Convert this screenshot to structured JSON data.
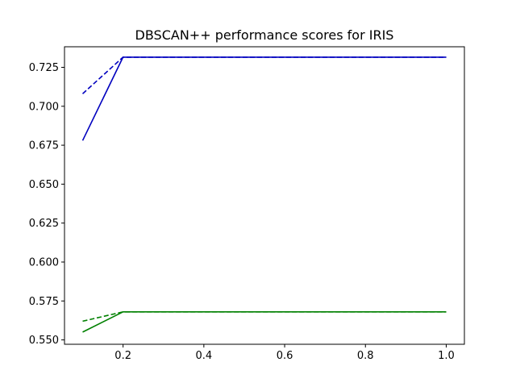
{
  "chart_data": {
    "type": "line",
    "title": "DBSCAN++ performance scores for IRIS",
    "xlabel": "",
    "ylabel": "",
    "xlim": [
      0.055,
      1.045
    ],
    "ylim": [
      0.5472,
      0.7382
    ],
    "grid": false,
    "legend": "none",
    "x": [
      0.1,
      0.2,
      0.3,
      0.4,
      0.5,
      0.6,
      0.7,
      0.8,
      0.9,
      1.0
    ],
    "x_ticks": [
      0.2,
      0.4,
      0.6,
      0.8,
      1.0
    ],
    "x_tick_labels": [
      "0.2",
      "0.4",
      "0.6",
      "0.8",
      "1.0"
    ],
    "y_ticks": [
      0.55,
      0.575,
      0.6,
      0.625,
      0.65,
      0.675,
      0.7,
      0.725
    ],
    "y_tick_labels": [
      "0.550",
      "0.575",
      "0.600",
      "0.625",
      "0.650",
      "0.675",
      "0.700",
      "0.725"
    ],
    "series": [
      {
        "color": "#0000bf",
        "style": "solid",
        "values": [
          0.678,
          0.7315,
          0.7315,
          0.7315,
          0.7315,
          0.7315,
          0.7315,
          0.7315,
          0.7315,
          0.7315
        ]
      },
      {
        "color": "#0000bf",
        "style": "dashed",
        "values": [
          0.708,
          0.7315,
          0.7315,
          0.7315,
          0.7315,
          0.7315,
          0.7315,
          0.7315,
          0.7315,
          0.7315
        ]
      },
      {
        "color": "#008000",
        "style": "solid",
        "values": [
          0.555,
          0.568,
          0.568,
          0.568,
          0.568,
          0.568,
          0.568,
          0.568,
          0.568,
          0.568
        ]
      },
      {
        "color": "#008000",
        "style": "dashed",
        "values": [
          0.562,
          0.568,
          0.568,
          0.568,
          0.568,
          0.568,
          0.568,
          0.568,
          0.568,
          0.568
        ]
      }
    ]
  }
}
